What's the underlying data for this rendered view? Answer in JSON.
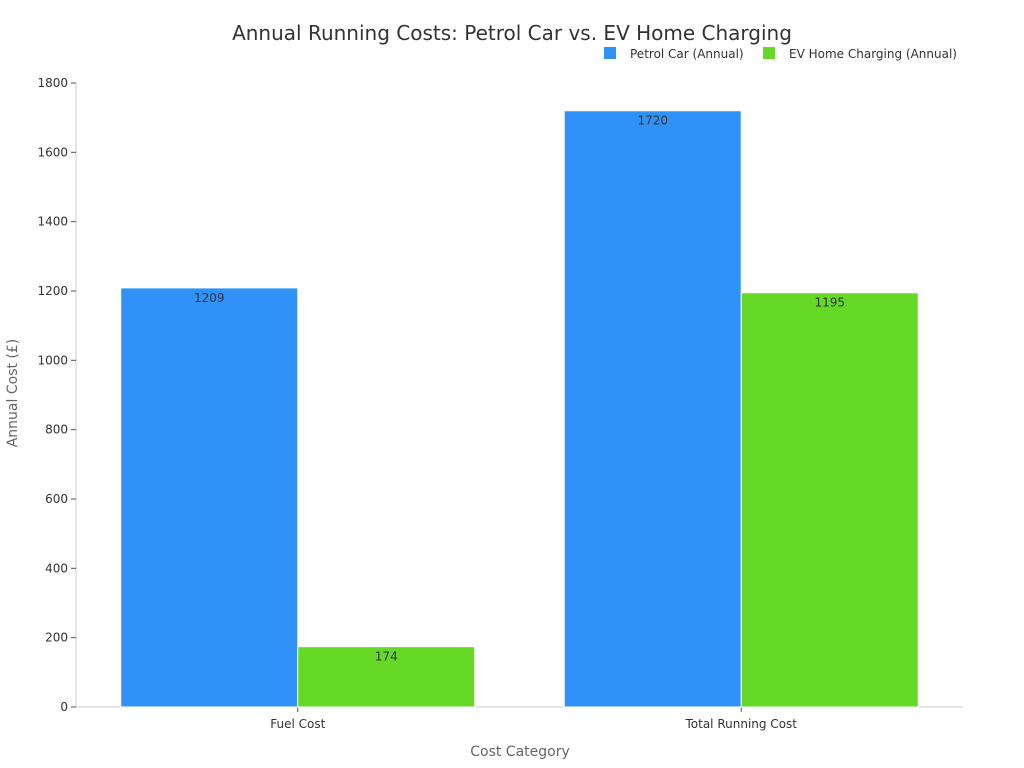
{
  "chart_data": {
    "type": "bar",
    "title": "Annual Running Costs: Petrol Car vs. EV Home Charging",
    "xlabel": "Cost Category",
    "ylabel": "Annual Cost (£)",
    "categories": [
      "Fuel Cost",
      "Total Running Cost"
    ],
    "series": [
      {
        "name": "Petrol Car (Annual)",
        "values": [
          1209,
          1720
        ],
        "color": "#3092f9"
      },
      {
        "name": "EV Home Charging (Annual)",
        "values": [
          174,
          1195
        ],
        "color": "#66d927"
      }
    ],
    "ylim": [
      0,
      1800
    ],
    "yticks": [
      0,
      200,
      400,
      600,
      800,
      1000,
      1200,
      1400,
      1600,
      1800
    ],
    "grid": false,
    "legend": "top-right"
  }
}
